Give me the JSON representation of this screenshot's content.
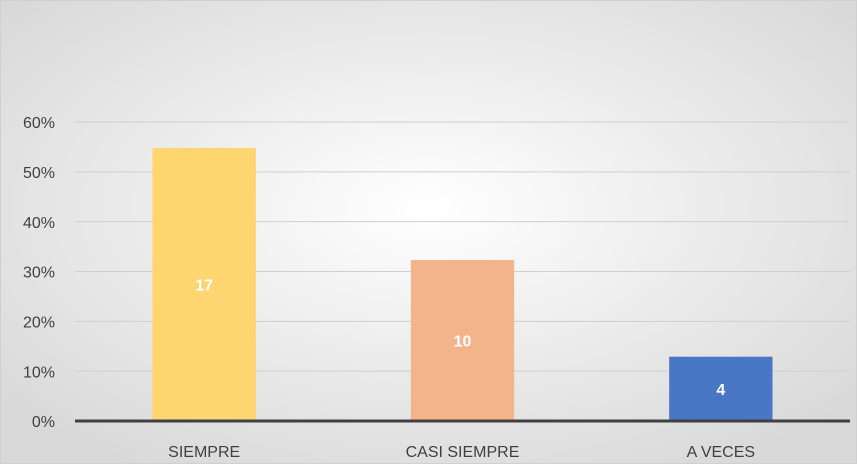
{
  "chart_data": {
    "type": "bar",
    "categories": [
      "SIEMPRE",
      "CASI SIEMPRE",
      "A VECES"
    ],
    "values": [
      54.8,
      32.3,
      12.9
    ],
    "counts": [
      17,
      10,
      4
    ],
    "colors": [
      "#fdd672",
      "#f4b48b",
      "#4a76c6"
    ],
    "ylim": [
      0,
      60
    ],
    "yticks": [
      {
        "value": 0,
        "label": "0%"
      },
      {
        "value": 10,
        "label": "10%"
      },
      {
        "value": 20,
        "label": "20%"
      },
      {
        "value": 30,
        "label": "30%"
      },
      {
        "value": 40,
        "label": "40%"
      },
      {
        "value": 50,
        "label": "50%"
      },
      {
        "value": 60,
        "label": "60%"
      }
    ],
    "grid": true
  }
}
